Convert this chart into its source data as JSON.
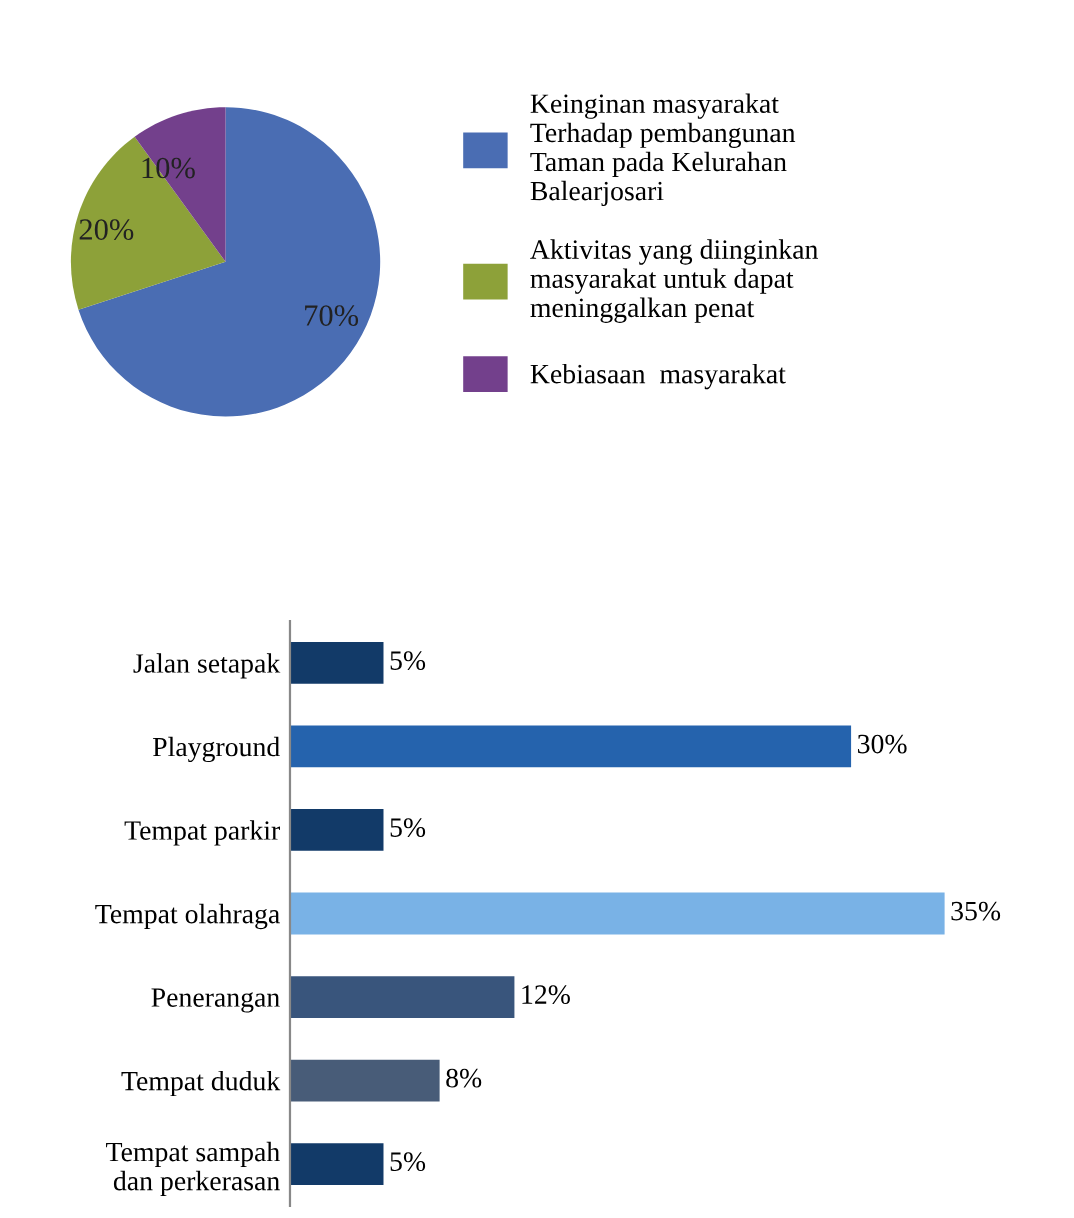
{
  "chart_data": [
    {
      "type": "pie",
      "categories": [
        "Keinginan masyarakat\nTerhadap pembangunan\nTaman pada Kelurahan\nBalearjosari",
        "Aktivitas yang diinginkan\nmasyarakat untuk dapat\nmeninggalkan penat",
        "Kebiasaan  masyarakat"
      ],
      "values": [
        70,
        20,
        10
      ],
      "colors": [
        "#4a6db3",
        "#8da139",
        "#73408c"
      ],
      "value_labels": [
        "70%",
        "20%",
        "10%"
      ],
      "legend": "right"
    },
    {
      "type": "bar",
      "orientation": "horizontal",
      "categories": [
        "Jalan setapak",
        "Playground",
        "Tempat parkir",
        "Tempat olahraga",
        "Penerangan",
        "Tempat duduk",
        "Tempat sampah\ndan perkerasan"
      ],
      "values": [
        5,
        30,
        5,
        35,
        12,
        8,
        5
      ],
      "colors": [
        "#123a68",
        "#2563ad",
        "#123a68",
        "#79b2e6",
        "#39557c",
        "#485c78",
        "#123a68"
      ],
      "value_labels": [
        "5%",
        "30%",
        "5%",
        "35%",
        "12%",
        "8%",
        "5%"
      ]
    }
  ]
}
